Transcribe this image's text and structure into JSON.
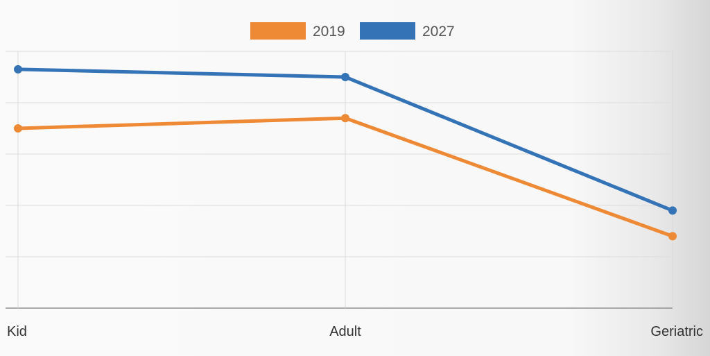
{
  "chart_data": {
    "type": "line",
    "categories": [
      "Kid",
      "Adult",
      "Geriatric"
    ],
    "series": [
      {
        "name": "2019",
        "color": "#ee8a35",
        "values": [
          70,
          74,
          28
        ]
      },
      {
        "name": "2027",
        "color": "#3573b7",
        "values": [
          93,
          90,
          38
        ]
      }
    ],
    "ylim": [
      0,
      100
    ],
    "grid": true,
    "legend": "top-center",
    "title": "",
    "xlabel": "",
    "ylabel": ""
  }
}
